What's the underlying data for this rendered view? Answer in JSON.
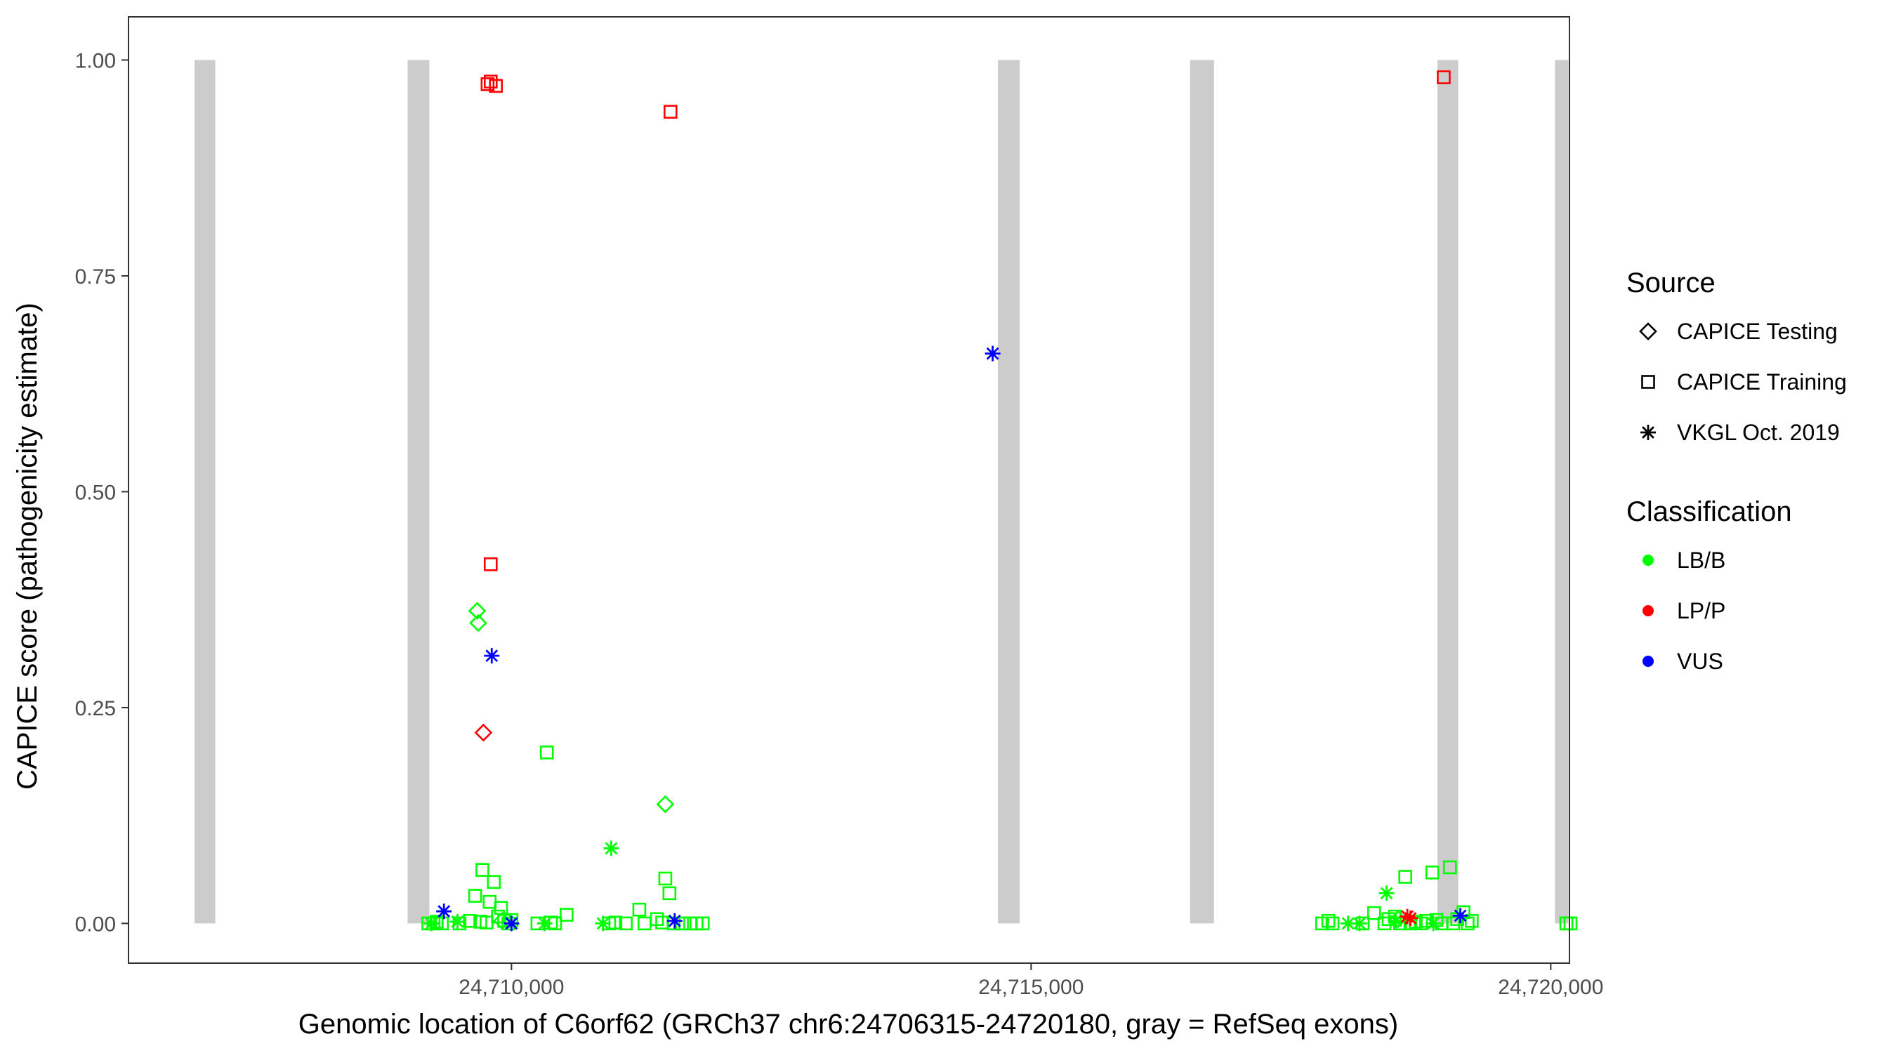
{
  "chart_data": {
    "type": "scatter",
    "xlabel": "Genomic location of C6orf62 (GRCh37 chr6:24706315-24720180, gray = RefSeq exons)",
    "ylabel": "CAPICE score (pathogenicity estimate)",
    "xlim": [
      24706315,
      24720180
    ],
    "ylim": [
      -0.046,
      1.05
    ],
    "xticks": [
      {
        "value": 24710000,
        "label": "24,710,000"
      },
      {
        "value": 24715000,
        "label": "24,715,000"
      },
      {
        "value": 24720000,
        "label": "24,720,000"
      }
    ],
    "yticks": [
      {
        "value": 0,
        "label": "0.00"
      },
      {
        "value": 0.25,
        "label": "0.25"
      },
      {
        "value": 0.5,
        "label": "0.50"
      },
      {
        "value": 0.75,
        "label": "0.75"
      },
      {
        "value": 1,
        "label": "1.00"
      }
    ],
    "grid": false,
    "exons": [
      {
        "start": 24706950,
        "end": 24707150
      },
      {
        "start": 24709000,
        "end": 24709210
      },
      {
        "start": 24714680,
        "end": 24714890
      },
      {
        "start": 24716530,
        "end": 24716760
      },
      {
        "start": 24718910,
        "end": 24719110
      },
      {
        "start": 24720040,
        "end": 24720170
      }
    ],
    "legend_position": "right",
    "legends": [
      {
        "title": "Source",
        "entries": [
          {
            "label": "CAPICE Testing",
            "shape": "diamond"
          },
          {
            "label": "CAPICE Training",
            "shape": "square"
          },
          {
            "label": "VKGL Oct. 2019",
            "shape": "asterisk"
          }
        ]
      },
      {
        "title": "Classification",
        "entries": [
          {
            "label": "LB/B",
            "color": "#00ff00"
          },
          {
            "label": "LP/P",
            "color": "#ff0000"
          },
          {
            "label": "VUS",
            "color": "#0000ff"
          }
        ]
      }
    ],
    "colors": {
      "LB/B": "#00ff00",
      "LP/P": "#ff0000",
      "VUS": "#0000ff",
      "exon": "#cccccc"
    },
    "series": [
      {
        "source": "CAPICE Training",
        "classification": "LB/B",
        "points": [
          [
            24709200,
            0.0
          ],
          [
            24709250,
            0.0
          ],
          [
            24709280,
            0.002
          ],
          [
            24709330,
            0.0
          ],
          [
            24709500,
            0.0
          ],
          [
            24709600,
            0.003
          ],
          [
            24709650,
            0.032
          ],
          [
            24709700,
            0.002
          ],
          [
            24709720,
            0.062
          ],
          [
            24709760,
            0.001
          ],
          [
            24709790,
            0.025
          ],
          [
            24709830,
            0.048
          ],
          [
            24709870,
            0.008
          ],
          [
            24709900,
            0.018
          ],
          [
            24709930,
            0.003
          ],
          [
            24709970,
            0.0
          ],
          [
            24710000,
            0.004
          ],
          [
            24710250,
            0.0
          ],
          [
            24710340,
            0.198
          ],
          [
            24710380,
            0.001
          ],
          [
            24710420,
            0.0
          ],
          [
            24710530,
            0.01
          ],
          [
            24710940,
            0.0
          ],
          [
            24711000,
            0.001
          ],
          [
            24711100,
            0.0
          ],
          [
            24711230,
            0.016
          ],
          [
            24711280,
            0.0
          ],
          [
            24711400,
            0.005
          ],
          [
            24711450,
            0.001
          ],
          [
            24711480,
            0.052
          ],
          [
            24711520,
            0.035
          ],
          [
            24711560,
            0.0
          ],
          [
            24711640,
            0.0
          ],
          [
            24711720,
            0.0
          ],
          [
            24711780,
            0.0
          ],
          [
            24711840,
            0.0
          ],
          [
            24717800,
            0.0
          ],
          [
            24717860,
            0.003
          ],
          [
            24717900,
            0.0
          ],
          [
            24718190,
            0.0
          ],
          [
            24718300,
            0.012
          ],
          [
            24718400,
            0.0
          ],
          [
            24718440,
            0.005
          ],
          [
            24718500,
            0.008
          ],
          [
            24718550,
            0.0
          ],
          [
            24718600,
            0.054
          ],
          [
            24718650,
            0.0
          ],
          [
            24718700,
            0.002
          ],
          [
            24718750,
            0.0
          ],
          [
            24718800,
            0.003
          ],
          [
            24718860,
            0.059
          ],
          [
            24718900,
            0.004
          ],
          [
            24718950,
            0.0
          ],
          [
            24719030,
            0.065
          ],
          [
            24719060,
            0.0
          ],
          [
            24719100,
            0.005
          ],
          [
            24719160,
            0.013
          ],
          [
            24719200,
            0.0
          ],
          [
            24719240,
            0.003
          ],
          [
            24720150,
            0.0
          ],
          [
            24720190,
            0.0
          ]
        ]
      },
      {
        "source": "CAPICE Training",
        "classification": "LP/P",
        "points": [
          [
            24709770,
            0.972
          ],
          [
            24709800,
            0.975
          ],
          [
            24709850,
            0.97
          ],
          [
            24711530,
            0.94
          ],
          [
            24709800,
            0.416
          ],
          [
            24718970,
            0.98
          ]
        ]
      },
      {
        "source": "CAPICE Testing",
        "classification": "LB/B",
        "points": [
          [
            24709670,
            0.362
          ],
          [
            24709680,
            0.348
          ],
          [
            24711480,
            0.138
          ],
          [
            24709910,
            0.003
          ],
          [
            24718530,
            0.005
          ]
        ]
      },
      {
        "source": "CAPICE Testing",
        "classification": "LP/P",
        "points": [
          [
            24709730,
            0.221
          ]
        ]
      },
      {
        "source": "VKGL Oct. 2019",
        "classification": "LB/B",
        "points": [
          [
            24709230,
            0.0
          ],
          [
            24709480,
            0.002
          ],
          [
            24710320,
            0.0
          ],
          [
            24710880,
            0.0
          ],
          [
            24710960,
            0.087
          ],
          [
            24718050,
            0.0
          ],
          [
            24718160,
            0.0
          ],
          [
            24718420,
            0.035
          ],
          [
            24718510,
            0.003
          ],
          [
            24718870,
            0.0
          ]
        ]
      },
      {
        "source": "VKGL Oct. 2019",
        "classification": "LP/P",
        "points": [
          [
            24718620,
            0.008
          ],
          [
            24718650,
            0.006
          ]
        ]
      },
      {
        "source": "VKGL Oct. 2019",
        "classification": "VUS",
        "points": [
          [
            24709350,
            0.014
          ],
          [
            24709810,
            0.31
          ],
          [
            24714630,
            0.66
          ],
          [
            24710000,
            0.0
          ],
          [
            24711570,
            0.003
          ],
          [
            24719130,
            0.009
          ]
        ]
      }
    ]
  }
}
